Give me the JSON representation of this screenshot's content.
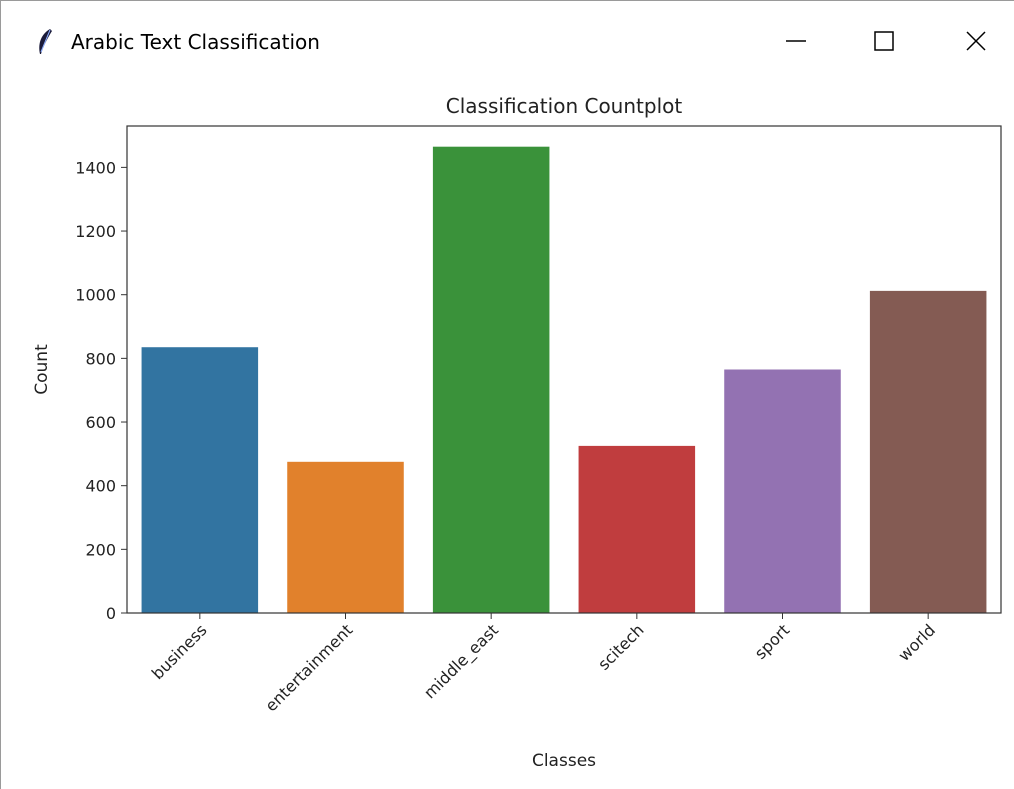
{
  "window": {
    "title": "Arabic Text Classification",
    "controls": {
      "minimize": "minimize",
      "maximize": "maximize",
      "close": "close"
    }
  },
  "chart_data": {
    "type": "bar",
    "title": "Classification Countplot",
    "xlabel": "Classes",
    "ylabel": "Count",
    "categories": [
      "business",
      "entertainment",
      "middle_east",
      "scitech",
      "sport",
      "world"
    ],
    "values": [
      835,
      475,
      1465,
      525,
      765,
      1012
    ],
    "colors": [
      "#3274a1",
      "#e1812c",
      "#3a923a",
      "#c03d3e",
      "#9372b2",
      "#845b53"
    ],
    "ylim": [
      0,
      1530
    ],
    "yticks": [
      0,
      200,
      400,
      600,
      800,
      1000,
      1200,
      1400
    ],
    "grid": false,
    "legend": "none"
  }
}
